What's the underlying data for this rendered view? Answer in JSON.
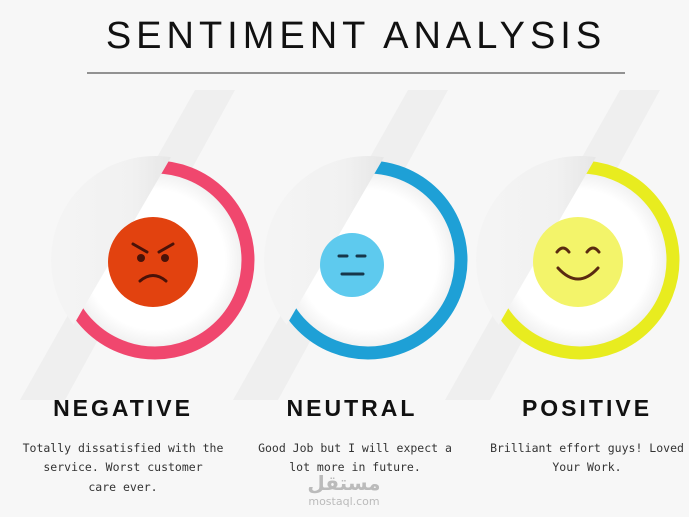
{
  "header": {
    "title": "SENTIMENT ANALYSIS"
  },
  "items": [
    {
      "label": "NEGATIVE",
      "description": [
        "Totally dissatisfied with the",
        "service. Worst customer",
        "care ever."
      ]
    },
    {
      "label": "NEUTRAL",
      "description": [
        "Good Job but I will expect a",
        "lot more in future."
      ]
    },
    {
      "label": "POSITIVE",
      "description": [
        "Brilliant effort guys! Loved",
        "Your Work."
      ]
    }
  ],
  "watermark": {
    "arabic": "مستقل",
    "latin": "mostaql.com"
  }
}
